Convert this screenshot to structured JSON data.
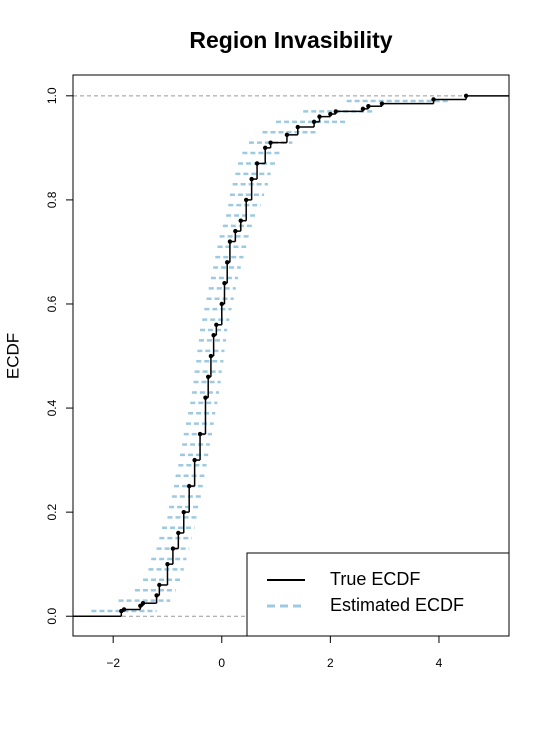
{
  "chart_data": {
    "type": "ecdf",
    "title": "Region Invasibility",
    "ylabel": "ECDF",
    "xlim": [
      -2.74,
      5.29
    ],
    "ylim": [
      -0.038,
      1.04
    ],
    "xticks": [
      {
        "value": -2,
        "label": "−2"
      },
      0,
      2,
      4
    ],
    "yticks": [
      {
        "value": 0,
        "label": "0.0"
      },
      0.2,
      0.4,
      0.6,
      0.8,
      {
        "value": 1,
        "label": "1.0"
      }
    ],
    "hlines": [
      0,
      1
    ],
    "legend": "bottomright",
    "series": [
      {
        "name": "True ECDF",
        "color": "#000000",
        "x": [
          -1.85,
          -1.8,
          -1.5,
          -1.45,
          -1.2,
          -1.15,
          -1.0,
          -0.9,
          -0.8,
          -0.7,
          -0.6,
          -0.5,
          -0.4,
          -0.3,
          -0.25,
          -0.2,
          -0.15,
          -0.1,
          0.0,
          0.05,
          0.1,
          0.15,
          0.25,
          0.35,
          0.45,
          0.55,
          0.65,
          0.8,
          0.9,
          1.2,
          1.4,
          1.7,
          1.8,
          2.0,
          2.1,
          2.6,
          2.7,
          2.95,
          3.9,
          4.5
        ],
        "values": [
          0.01,
          0.013,
          0.02,
          0.025,
          0.04,
          0.06,
          0.1,
          0.13,
          0.16,
          0.2,
          0.25,
          0.3,
          0.35,
          0.42,
          0.46,
          0.5,
          0.54,
          0.56,
          0.6,
          0.64,
          0.68,
          0.72,
          0.74,
          0.76,
          0.8,
          0.84,
          0.87,
          0.9,
          0.91,
          0.925,
          0.94,
          0.95,
          0.96,
          0.965,
          0.97,
          0.975,
          0.98,
          0.985,
          0.993,
          1.0
        ]
      },
      {
        "name": "Estimated ECDF",
        "color": "#9ecae1",
        "values": [
          0.01,
          0.03,
          0.05,
          0.07,
          0.09,
          0.11,
          0.13,
          0.15,
          0.17,
          0.19,
          0.21,
          0.23,
          0.25,
          0.27,
          0.29,
          0.31,
          0.33,
          0.35,
          0.37,
          0.39,
          0.41,
          0.43,
          0.45,
          0.47,
          0.49,
          0.51,
          0.53,
          0.55,
          0.57,
          0.59,
          0.61,
          0.63,
          0.65,
          0.67,
          0.69,
          0.71,
          0.73,
          0.75,
          0.77,
          0.79,
          0.81,
          0.83,
          0.85,
          0.87,
          0.89,
          0.91,
          0.93,
          0.95,
          0.97,
          0.99
        ],
        "xlow": [
          -2.4,
          -1.9,
          -1.6,
          -1.45,
          -1.35,
          -1.3,
          -1.2,
          -1.15,
          -1.1,
          -1.0,
          -0.97,
          -0.92,
          -0.88,
          -0.85,
          -0.8,
          -0.77,
          -0.73,
          -0.7,
          -0.66,
          -0.62,
          -0.58,
          -0.55,
          -0.52,
          -0.5,
          -0.47,
          -0.45,
          -0.42,
          -0.4,
          -0.36,
          -0.32,
          -0.28,
          -0.24,
          -0.2,
          -0.16,
          -0.12,
          -0.08,
          -0.04,
          0.02,
          0.08,
          0.12,
          0.15,
          0.2,
          0.25,
          0.3,
          0.38,
          0.5,
          0.75,
          1.0,
          1.5,
          2.3
        ],
        "xhigh": [
          -1.2,
          -0.95,
          -0.85,
          -0.75,
          -0.7,
          -0.65,
          -0.6,
          -0.55,
          -0.5,
          -0.45,
          -0.42,
          -0.38,
          -0.35,
          -0.32,
          -0.28,
          -0.25,
          -0.22,
          -0.18,
          -0.15,
          -0.12,
          -0.08,
          -0.05,
          -0.02,
          0.0,
          0.03,
          0.05,
          0.08,
          0.1,
          0.14,
          0.18,
          0.22,
          0.26,
          0.3,
          0.35,
          0.4,
          0.45,
          0.5,
          0.58,
          0.65,
          0.72,
          0.78,
          0.85,
          0.9,
          0.98,
          1.1,
          1.3,
          1.75,
          2.3,
          2.8,
          4.2
        ]
      }
    ]
  }
}
